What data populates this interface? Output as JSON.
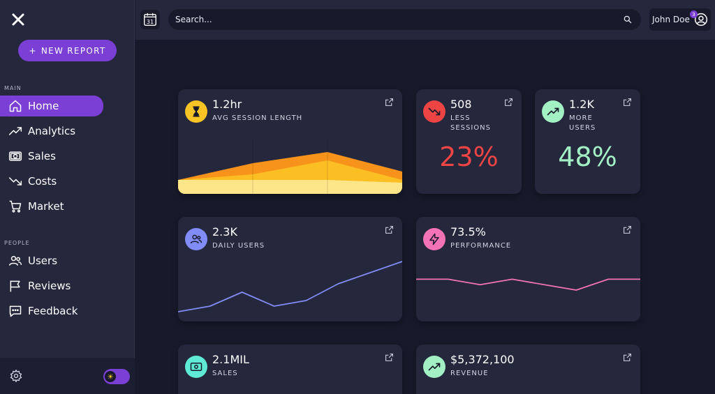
{
  "sidebar": {
    "new_report_label": "NEW REPORT",
    "sections": {
      "main": "MAIN",
      "people": "PEOPLE"
    },
    "main_items": [
      {
        "label": "Home",
        "icon": "home-icon",
        "active": true
      },
      {
        "label": "Analytics",
        "icon": "trend-up-icon"
      },
      {
        "label": "Sales",
        "icon": "cash-icon"
      },
      {
        "label": "Costs",
        "icon": "trend-down-icon"
      },
      {
        "label": "Market",
        "icon": "cart-icon"
      }
    ],
    "people_items": [
      {
        "label": "Users",
        "icon": "users-icon"
      },
      {
        "label": "Reviews",
        "icon": "flag-icon"
      },
      {
        "label": "Feedback",
        "icon": "chat-icon"
      }
    ]
  },
  "topbar": {
    "calendar_day": "31",
    "search_placeholder": "Search...",
    "user_name": "John Doe",
    "notification_count": "3"
  },
  "cards": {
    "session": {
      "value": "1.2hr",
      "label": "AVG SESSION LENGTH",
      "icon": "hourglass-icon",
      "color": "#f7c325"
    },
    "less_sessions": {
      "value": "508",
      "label_line1": "LESS",
      "label_line2": "SESSIONS",
      "percent": "23%",
      "icon": "trend-down-icon",
      "color": "#ef4444"
    },
    "more_users": {
      "value": "1.2K",
      "label_line1": "MORE",
      "label_line2": "USERS",
      "percent": "48%",
      "icon": "trend-up-icon",
      "color": "#a3f0c4"
    },
    "daily_users": {
      "value": "2.3K",
      "label": "DAILY USERS",
      "icon": "users-icon",
      "color": "#818cf8"
    },
    "performance": {
      "value": "73.5%",
      "label": "PERFORMANCE",
      "icon": "lightning-icon",
      "color": "#f472b6"
    },
    "sales": {
      "value": "2.1MIL",
      "label": "SALES",
      "icon": "cash-icon",
      "color": "#5eead4"
    },
    "revenue": {
      "value": "$5,372,100",
      "label": "REVENUE",
      "icon": "trend-up-icon",
      "color": "#a3f0c4"
    }
  },
  "chart_data": [
    {
      "type": "area",
      "x": [
        0,
        1,
        2,
        3
      ],
      "series": [
        {
          "values": [
            5,
            11,
            15,
            8
          ]
        },
        {
          "values": [
            5,
            7,
            12,
            5
          ]
        },
        {
          "values": [
            5,
            5,
            5,
            4
          ]
        }
      ],
      "ylim": [
        0,
        20
      ]
    },
    {
      "type": "line",
      "x": [
        0,
        1,
        2,
        3,
        4,
        5,
        6,
        7
      ],
      "values": [
        2,
        4,
        9,
        4,
        6,
        12,
        16,
        20
      ],
      "ylim": [
        0,
        22
      ],
      "color": "#818cf8"
    },
    {
      "type": "line",
      "x": [
        0,
        1,
        2,
        3,
        4,
        5,
        6,
        7
      ],
      "values": [
        14,
        14,
        12,
        14,
        12,
        10,
        14,
        14
      ],
      "ylim": [
        0,
        20
      ],
      "color": "#f472b6"
    }
  ]
}
